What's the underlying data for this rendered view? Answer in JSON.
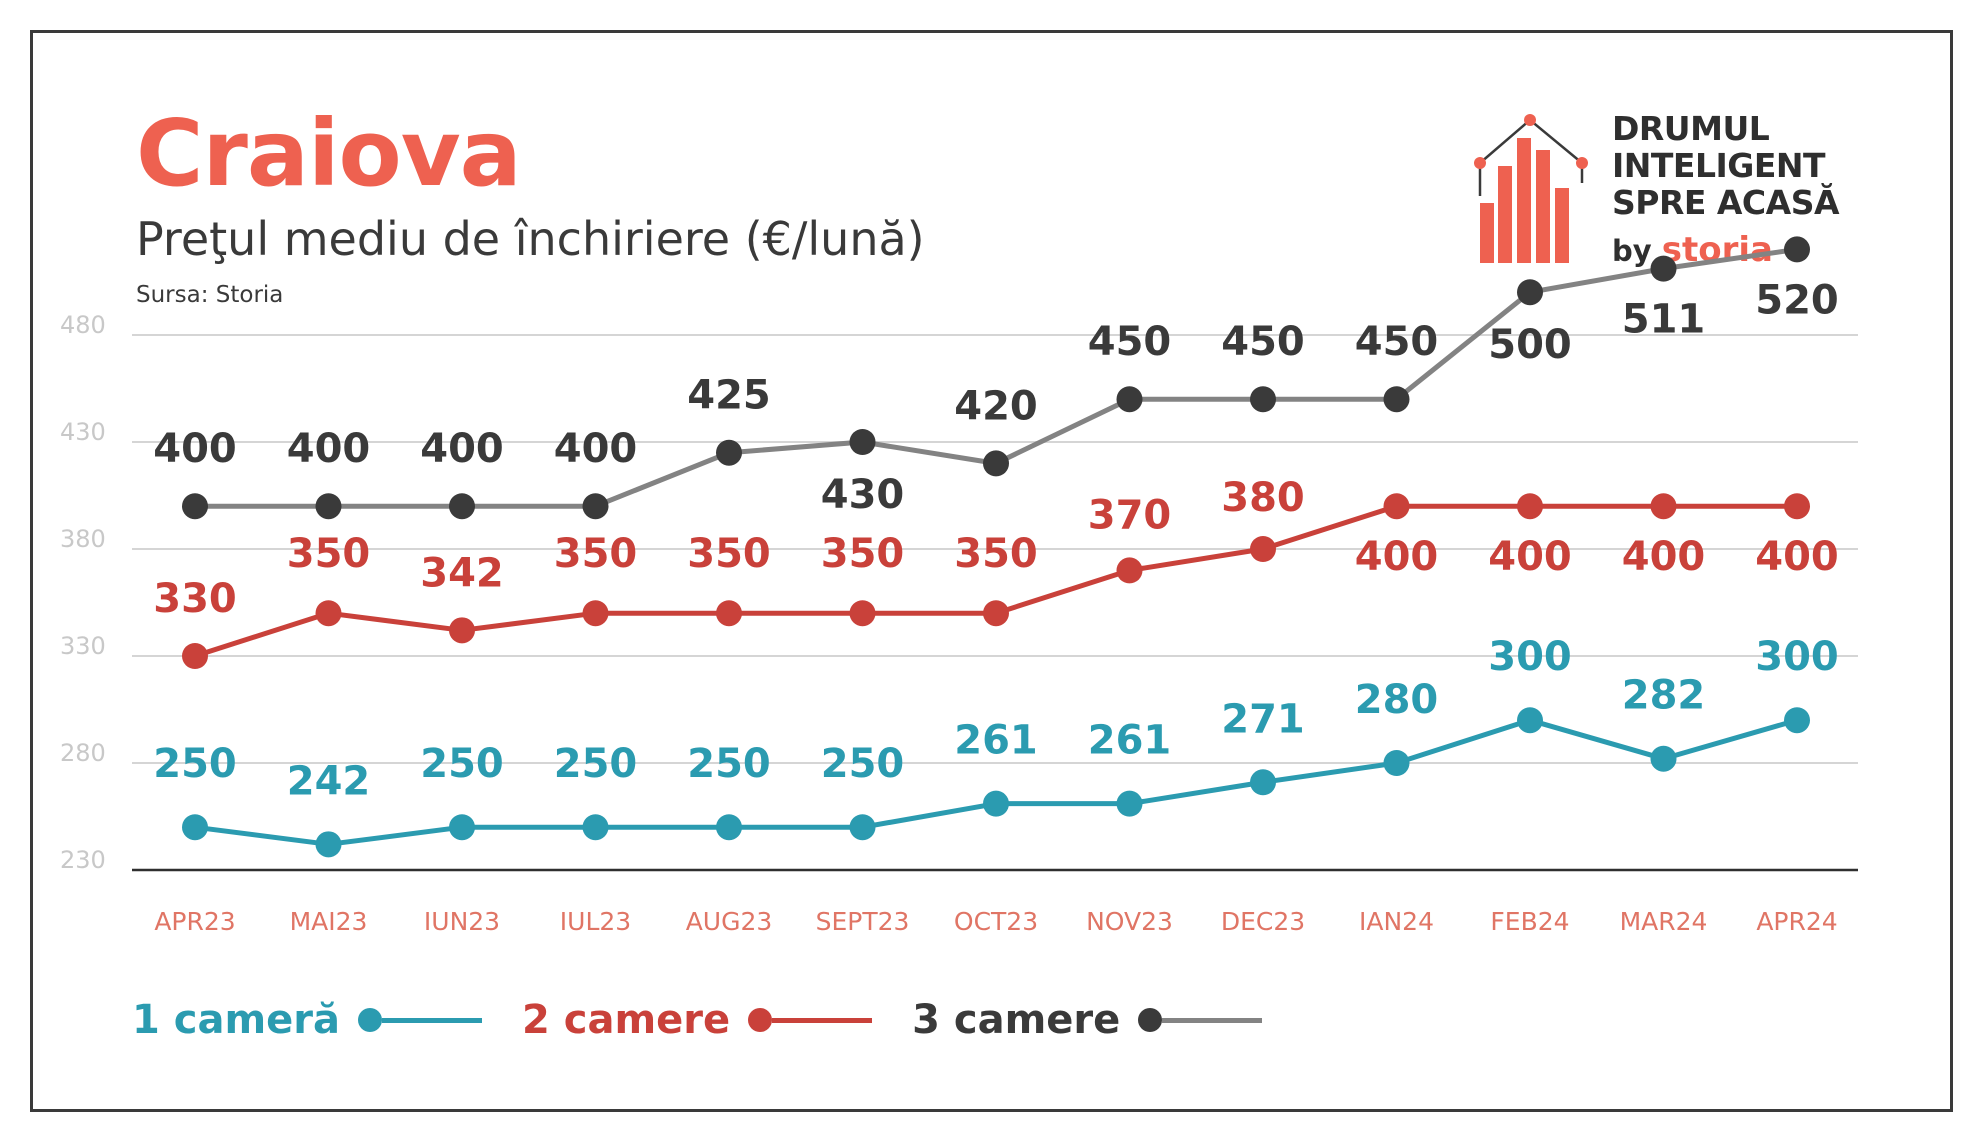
{
  "header": {
    "title": "Craiova",
    "subtitle": "Preţul mediu de închiriere (€/lună)",
    "source": "Sursa: Storia"
  },
  "logo": {
    "line1": "DRUMUL",
    "line2": "INTELIGENT",
    "line3": "SPRE ACASĂ",
    "by": "by",
    "brand": "storia"
  },
  "colors": {
    "accent": "#ee6150",
    "series1": "#2b9bb0",
    "series2": "#c9413a",
    "series3": "#838383",
    "series3_marker": "#3a3a3a",
    "axis_tick": "#e07565",
    "grid": "#d5d5d5"
  },
  "chart_data": {
    "type": "line",
    "title": "Craiova",
    "subtitle": "Preţul mediu de închiriere (€/lună)",
    "categories": [
      "APR23",
      "MAI23",
      "IUN23",
      "IUL23",
      "AUG23",
      "SEPT23",
      "OCT23",
      "NOV23",
      "DEC23",
      "IAN24",
      "FEB24",
      "MAR24",
      "APR24"
    ],
    "y_ticks": [
      "230",
      "280",
      "330",
      "380",
      "430",
      "480"
    ],
    "series": [
      {
        "name": "1 cameră",
        "values": [
          250,
          242,
          250,
          250,
          250,
          250,
          261,
          261,
          271,
          280,
          300,
          282,
          300
        ]
      },
      {
        "name": "2 camere",
        "values": [
          330,
          350,
          342,
          350,
          350,
          350,
          350,
          370,
          380,
          400,
          400,
          400,
          400
        ]
      },
      {
        "name": "3 camere",
        "values": [
          400,
          400,
          400,
          400,
          425,
          430,
          420,
          450,
          450,
          450,
          500,
          511,
          520
        ]
      }
    ],
    "legend": "bottom-left",
    "grid": true
  }
}
